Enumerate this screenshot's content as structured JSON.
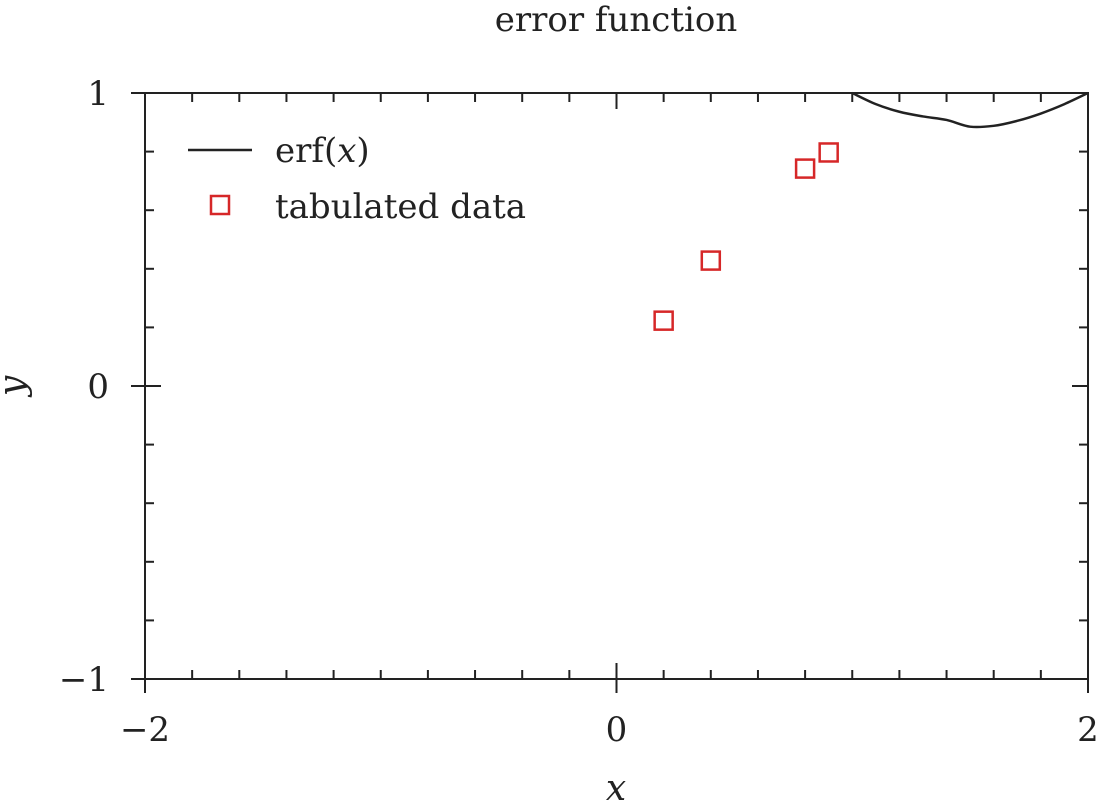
{
  "chart_data": {
    "type": "scatter",
    "title": "error function",
    "xlabel": "x",
    "ylabel": "y",
    "xlim": [
      -2,
      2
    ],
    "ylim": [
      -1,
      1
    ],
    "x_tick_labels": [
      "−2",
      "0",
      "2"
    ],
    "x_tick_values": [
      -2,
      0,
      2
    ],
    "y_tick_labels": [
      "−1",
      "0",
      "1"
    ],
    "y_tick_values": [
      -1,
      0,
      1
    ],
    "grid": false,
    "legend_position": "top-left",
    "series": [
      {
        "name": "erf(x)",
        "type": "line",
        "color": "#222222",
        "x": [
          1.0,
          1.1,
          1.2,
          1.3,
          1.4,
          1.5,
          1.6,
          1.7,
          1.8,
          1.9,
          2.0
        ],
        "y": [
          1.0,
          0.962,
          0.936,
          0.92,
          0.908,
          0.885,
          0.888,
          0.905,
          0.93,
          0.962,
          1.0
        ]
      },
      {
        "name": "tabulated data",
        "type": "scatter",
        "marker": "open-square",
        "color": "#d62728",
        "x": [
          0.2,
          0.4,
          0.8,
          0.9
        ],
        "y": [
          0.223,
          0.428,
          0.742,
          0.797
        ]
      }
    ]
  },
  "legend": {
    "line_prefix": "erf(",
    "line_var": "x",
    "line_suffix": ")",
    "markers_label": "tabulated data"
  }
}
